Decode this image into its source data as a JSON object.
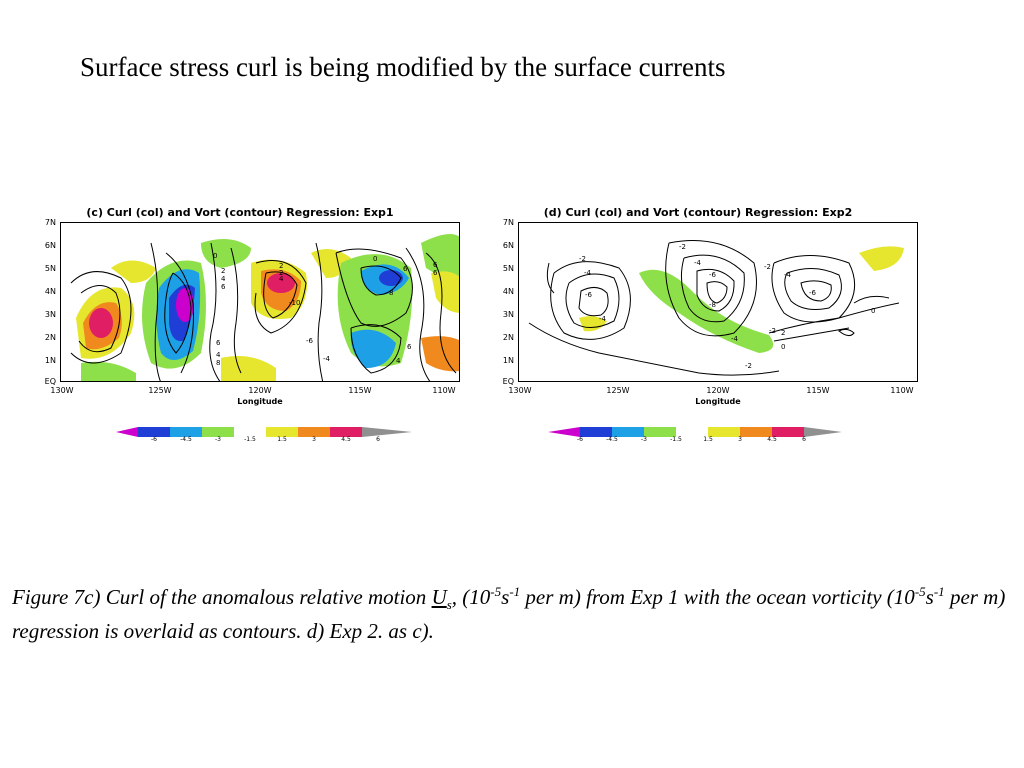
{
  "slide_title": "Surface stress curl is being modified by the surface currents",
  "panels": [
    {
      "title": "(c) Curl (col) and Vort (contour) Regression: Exp1",
      "y_ticks": [
        "7N",
        "6N",
        "5N",
        "4N",
        "3N",
        "2N",
        "1N",
        "EQ"
      ],
      "x_ticks": [
        "130W",
        "125W",
        "120W",
        "115W",
        "110W"
      ],
      "x_label": "Longitude",
      "contour_labels": [
        "0",
        "2",
        "4",
        "6",
        "2",
        "2",
        "4",
        "0",
        "6",
        "4",
        "6",
        "6",
        "8",
        "-10",
        "-6",
        "-4",
        "6",
        "4",
        "8",
        "6",
        "4"
      ],
      "colorbar_labels": [
        "-6",
        "-4.5",
        "-3",
        "-1.5",
        "1.5",
        "3",
        "4.5",
        "6"
      ]
    },
    {
      "title": "(d) Curl (col) and Vort (contour) Regression: Exp2",
      "y_ticks": [
        "7N",
        "6N",
        "5N",
        "4N",
        "3N",
        "2N",
        "1N",
        "EQ"
      ],
      "x_ticks": [
        "130W",
        "125W",
        "120W",
        "115W",
        "110W"
      ],
      "x_label": "Longitude",
      "contour_labels": [
        "-2",
        "-4",
        "-6",
        "-4",
        "-2",
        "-4",
        "-6",
        "-8",
        "-2",
        "-4",
        "-6",
        "-4",
        "-2",
        "2",
        "0",
        "0",
        "-2"
      ],
      "colorbar_labels": [
        "-6",
        "-4.5",
        "-3",
        "-1.5",
        "1.5",
        "3",
        "4.5",
        "6"
      ]
    }
  ],
  "colors": {
    "scale": [
      "#cc00cc",
      "#1f3ed6",
      "#1ea0e6",
      "#8ee04a",
      "#ffffff",
      "#e6e62e",
      "#f08a1e",
      "#e01e64",
      "#909090"
    ]
  },
  "caption": {
    "p1": "Figure 7c) Curl of the anomalous relative motion ",
    "u": "U",
    "u_sub": "s",
    "p2": ", (10",
    "e1": "-5",
    "p3": "s",
    "e2": "-1",
    "p4": " per m) from Exp 1 with the ocean vorticity (10",
    "e3": "-5",
    "p5": "s",
    "e4": "-1",
    "p6": " per m) regression is overlaid as contours. d) Exp 2. as c)."
  }
}
